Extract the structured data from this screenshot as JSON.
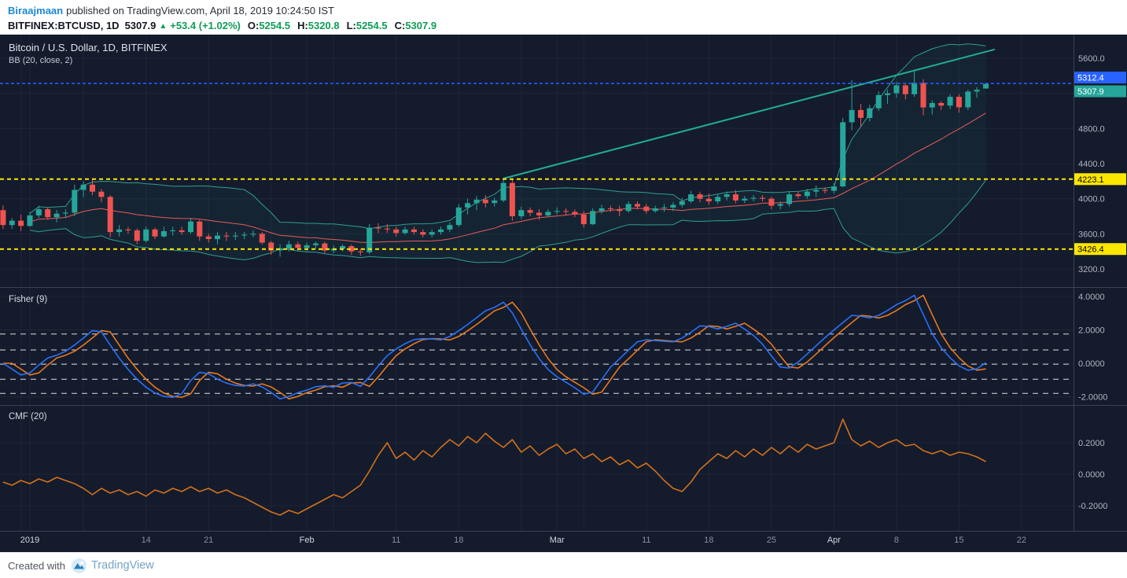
{
  "header": {
    "author": "Biraajmaan",
    "published_text": "published on TradingView.com, April 18, 2019 10:24:50 IST",
    "symbol": "BITFINEX:BTCUSD, 1D",
    "last_price": "5307.9",
    "arrow": "▲",
    "change": "+53.4 (+1.02%)",
    "o_label": "O:",
    "o_value": "5254.5",
    "h_label": "H:",
    "h_value": "5320.8",
    "l_label": "L:",
    "l_value": "5254.5",
    "c_label": "C:",
    "c_value": "5307.9"
  },
  "legends": {
    "main_title": "Bitcoin / U.S. Dollar, 1D, BITFINEX",
    "bb": "BB (20, close, 2)",
    "fisher": "Fisher (9)",
    "cmf": "CMF (20)"
  },
  "footer": {
    "created_with": "Created with",
    "brand": "TradingView"
  },
  "colors": {
    "bg": "#141b2d",
    "grid": "#1e2638",
    "divider": "#3a4156",
    "axis_text": "#b2b5be",
    "time_text_minor": "#8a8f9e",
    "time_text_major": "#d1d4dc",
    "candle_up": "#26a69a",
    "candle_down": "#ef5350",
    "bb_band": "#2f9e8f",
    "bb_fill": "rgba(47,158,143,0.07)",
    "bb_basis": "#e85a5a",
    "trendline": "#22ab94",
    "fisher_line": "#2a72f5",
    "fisher_trigger": "#e8791e",
    "fisher_level": "rgba(255,255,255,0.85)",
    "cmf_line": "#d2711a",
    "hline_blue": "#2962ff",
    "hline_yellow": "#ffe600",
    "label_teal_bg": "#26a69a",
    "header_green": "#0f9d58",
    "author_blue": "#1e88d2",
    "brand_text": "#74a3c6"
  },
  "chart_data": {
    "type": "candlestick",
    "title": "Bitcoin / U.S. Dollar, 1D, BITFINEX",
    "symbol": "BITFINEX:BTCUSD",
    "interval": "1D",
    "start_date": "2018-12-29",
    "candles_ohlc": [
      [
        3870,
        3925,
        3655,
        3700
      ],
      [
        3700,
        3780,
        3655,
        3750
      ],
      [
        3750,
        3820,
        3630,
        3690
      ],
      [
        3690,
        3850,
        3680,
        3810
      ],
      [
        3810,
        3920,
        3780,
        3880
      ],
      [
        3880,
        3900,
        3760,
        3790
      ],
      [
        3790,
        3870,
        3730,
        3830
      ],
      [
        3830,
        3880,
        3780,
        3840
      ],
      [
        3840,
        4160,
        3800,
        4100
      ],
      [
        4100,
        4200,
        4020,
        4160
      ],
      [
        4160,
        4220,
        4040,
        4080
      ],
      [
        4080,
        4110,
        3960,
        4020
      ],
      [
        4020,
        4040,
        3560,
        3620
      ],
      [
        3620,
        3700,
        3570,
        3650
      ],
      [
        3650,
        3680,
        3600,
        3640
      ],
      [
        3640,
        3660,
        3480,
        3520
      ],
      [
        3520,
        3680,
        3500,
        3650
      ],
      [
        3650,
        3670,
        3540,
        3570
      ],
      [
        3570,
        3680,
        3560,
        3630
      ],
      [
        3630,
        3680,
        3580,
        3640
      ],
      [
        3640,
        3680,
        3590,
        3620
      ],
      [
        3620,
        3780,
        3600,
        3740
      ],
      [
        3740,
        3760,
        3520,
        3570
      ],
      [
        3570,
        3600,
        3500,
        3540
      ],
      [
        3540,
        3620,
        3480,
        3580
      ],
      [
        3580,
        3620,
        3520,
        3570
      ],
      [
        3570,
        3620,
        3530,
        3580
      ],
      [
        3580,
        3620,
        3540,
        3590
      ],
      [
        3590,
        3640,
        3560,
        3600
      ],
      [
        3600,
        3620,
        3480,
        3500
      ],
      [
        3500,
        3520,
        3360,
        3410
      ],
      [
        3410,
        3480,
        3340,
        3430
      ],
      [
        3430,
        3520,
        3400,
        3480
      ],
      [
        3480,
        3510,
        3410,
        3440
      ],
      [
        3440,
        3500,
        3400,
        3470
      ],
      [
        3470,
        3510,
        3430,
        3490
      ],
      [
        3490,
        3510,
        3380,
        3410
      ],
      [
        3410,
        3470,
        3380,
        3430
      ],
      [
        3430,
        3480,
        3400,
        3460
      ],
      [
        3460,
        3480,
        3360,
        3400
      ],
      [
        3400,
        3430,
        3350,
        3390
      ],
      [
        3390,
        3710,
        3370,
        3670
      ],
      [
        3670,
        3720,
        3610,
        3660
      ],
      [
        3660,
        3710,
        3610,
        3650
      ],
      [
        3650,
        3680,
        3570,
        3610
      ],
      [
        3610,
        3680,
        3590,
        3650
      ],
      [
        3650,
        3680,
        3590,
        3620
      ],
      [
        3620,
        3650,
        3560,
        3590
      ],
      [
        3590,
        3650,
        3560,
        3620
      ],
      [
        3620,
        3680,
        3590,
        3650
      ],
      [
        3650,
        3730,
        3620,
        3700
      ],
      [
        3700,
        3940,
        3680,
        3900
      ],
      [
        3900,
        4000,
        3820,
        3950
      ],
      [
        3950,
        4030,
        3870,
        3990
      ],
      [
        3990,
        4040,
        3900,
        3950
      ],
      [
        3950,
        4010,
        3910,
        3980
      ],
      [
        3980,
        4220,
        3960,
        4180
      ],
      [
        4180,
        4230,
        3750,
        3800
      ],
      [
        3800,
        3910,
        3770,
        3870
      ],
      [
        3870,
        3900,
        3800,
        3840
      ],
      [
        3840,
        3880,
        3760,
        3810
      ],
      [
        3810,
        3880,
        3790,
        3850
      ],
      [
        3850,
        3900,
        3820,
        3860
      ],
      [
        3860,
        3890,
        3810,
        3850
      ],
      [
        3850,
        3880,
        3790,
        3820
      ],
      [
        3820,
        3860,
        3670,
        3710
      ],
      [
        3710,
        3890,
        3700,
        3860
      ],
      [
        3860,
        3930,
        3830,
        3890
      ],
      [
        3890,
        3920,
        3850,
        3880
      ],
      [
        3880,
        3920,
        3800,
        3860
      ],
      [
        3860,
        3970,
        3840,
        3940
      ],
      [
        3940,
        3970,
        3880,
        3910
      ],
      [
        3910,
        3940,
        3830,
        3860
      ],
      [
        3860,
        3920,
        3840,
        3890
      ],
      [
        3890,
        3940,
        3850,
        3900
      ],
      [
        3900,
        3960,
        3860,
        3930
      ],
      [
        3930,
        4010,
        3900,
        3970
      ],
      [
        3970,
        4090,
        3950,
        4050
      ],
      [
        4050,
        4080,
        3960,
        4000
      ],
      [
        4000,
        4060,
        3930,
        3970
      ],
      [
        3970,
        4050,
        3940,
        4020
      ],
      [
        4020,
        4080,
        3980,
        4050
      ],
      [
        4050,
        4100,
        3950,
        3980
      ],
      [
        3980,
        4030,
        3950,
        4000
      ],
      [
        4000,
        4040,
        3970,
        4010
      ],
      [
        4010,
        4040,
        3970,
        4000
      ],
      [
        4000,
        4020,
        3880,
        3920
      ],
      [
        3920,
        3970,
        3880,
        3940
      ],
      [
        3940,
        4080,
        3910,
        4050
      ],
      [
        4050,
        4080,
        4000,
        4030
      ],
      [
        4030,
        4110,
        4000,
        4080
      ],
      [
        4080,
        4150,
        4020,
        4100
      ],
      [
        4100,
        4130,
        4060,
        4090
      ],
      [
        4090,
        4180,
        4060,
        4140
      ],
      [
        4140,
        4920,
        4130,
        4870
      ],
      [
        4870,
        5350,
        4780,
        5010
      ],
      [
        5010,
        5080,
        4820,
        4920
      ],
      [
        4920,
        5070,
        4880,
        5030
      ],
      [
        5030,
        5220,
        5000,
        5180
      ],
      [
        5180,
        5240,
        5080,
        5200
      ],
      [
        5200,
        5330,
        5150,
        5290
      ],
      [
        5290,
        5320,
        5130,
        5190
      ],
      [
        5190,
        5450,
        5160,
        5320
      ],
      [
        5320,
        5360,
        4950,
        5040
      ],
      [
        5040,
        5120,
        4960,
        5090
      ],
      [
        5090,
        5110,
        5010,
        5060
      ],
      [
        5060,
        5190,
        5020,
        5160
      ],
      [
        5160,
        5190,
        4980,
        5040
      ],
      [
        5040,
        5240,
        5010,
        5220
      ],
      [
        5220,
        5270,
        5150,
        5240
      ],
      [
        5254.5,
        5320.8,
        5254.5,
        5307.9
      ]
    ],
    "overlays": {
      "bollinger": {
        "label": "BB (20, close, 2)",
        "length": 20,
        "source": "close",
        "mult": 2
      },
      "trendline": {
        "from_index": 56,
        "from_price": 4230,
        "to_index": 111,
        "to_price": 5700
      },
      "hlines": [
        {
          "price": 5312.4,
          "label": "5312.4",
          "color": "#2962ff",
          "text_color": "#ffffff",
          "style": "dashed",
          "width": 1.5,
          "stack": "above"
        },
        {
          "price": 4223.1,
          "label": "4223.1",
          "color": "#ffe600",
          "text_color": "#000000",
          "style": "dashed",
          "width": 2,
          "stack": "center"
        },
        {
          "price": 3426.4,
          "label": "3426.4",
          "color": "#ffe600",
          "text_color": "#000000",
          "style": "dashed",
          "width": 2,
          "stack": "center"
        }
      ],
      "last_price": {
        "price": 5307.9,
        "label": "5307.9",
        "color": "#26a69a",
        "text_color": "#ffffff"
      }
    },
    "price_axis": {
      "ticks": [
        {
          "v": 5600,
          "label": "5600.0"
        },
        {
          "v": 4800,
          "label": "4800.0"
        },
        {
          "v": 4400,
          "label": "4400.0"
        },
        {
          "v": 4000,
          "label": "4000.0"
        },
        {
          "v": 3600,
          "label": "3600.0"
        },
        {
          "v": 3200,
          "label": "3200.0"
        }
      ],
      "grid_values": [
        5600,
        5200,
        4800,
        4400,
        4000,
        3600,
        3200
      ],
      "range": [
        3130,
        5870
      ]
    },
    "fisher_pane": {
      "label": "Fisher (9)",
      "length": 9,
      "axis_ticks": [
        {
          "v": 4,
          "label": "4.0000"
        },
        {
          "v": 2,
          "label": "2.0000"
        },
        {
          "v": 0,
          "label": "0.0000"
        },
        {
          "v": -2,
          "label": "-2.0000"
        }
      ],
      "levels_dashed": [
        1.75,
        0.8,
        -0.05,
        -0.95,
        -1.8
      ],
      "range": [
        -2.6,
        4.6
      ]
    },
    "cmf_pane": {
      "label": "CMF (20)",
      "length": 20,
      "axis_ticks": [
        {
          "v": 0.2,
          "label": "0.2000"
        },
        {
          "v": 0,
          "label": "0.0000"
        },
        {
          "v": -0.2,
          "label": "-0.2000"
        }
      ],
      "values": [
        -0.05,
        -0.07,
        -0.04,
        -0.06,
        -0.03,
        -0.05,
        -0.02,
        -0.04,
        -0.06,
        -0.09,
        -0.13,
        -0.09,
        -0.12,
        -0.1,
        -0.13,
        -0.11,
        -0.14,
        -0.1,
        -0.12,
        -0.09,
        -0.11,
        -0.08,
        -0.11,
        -0.09,
        -0.12,
        -0.1,
        -0.13,
        -0.15,
        -0.18,
        -0.21,
        -0.24,
        -0.26,
        -0.23,
        -0.25,
        -0.22,
        -0.19,
        -0.16,
        -0.13,
        -0.15,
        -0.11,
        -0.07,
        0.02,
        0.12,
        0.2,
        0.1,
        0.14,
        0.09,
        0.15,
        0.11,
        0.17,
        0.22,
        0.18,
        0.24,
        0.2,
        0.26,
        0.21,
        0.17,
        0.22,
        0.14,
        0.18,
        0.12,
        0.16,
        0.19,
        0.13,
        0.16,
        0.1,
        0.13,
        0.08,
        0.11,
        0.06,
        0.09,
        0.04,
        0.07,
        0.02,
        -0.04,
        -0.09,
        -0.11,
        -0.05,
        0.03,
        0.08,
        0.13,
        0.1,
        0.15,
        0.11,
        0.16,
        0.12,
        0.17,
        0.13,
        0.18,
        0.14,
        0.19,
        0.16,
        0.18,
        0.2,
        0.35,
        0.22,
        0.18,
        0.21,
        0.17,
        0.2,
        0.22,
        0.18,
        0.19,
        0.15,
        0.13,
        0.15,
        0.12,
        0.14,
        0.13,
        0.11,
        0.08
      ],
      "range": [
        -0.36,
        0.44
      ]
    },
    "time_axis": {
      "ticks": [
        {
          "i": 3,
          "label": "2019",
          "major": true
        },
        {
          "i": 16,
          "label": "14",
          "major": false
        },
        {
          "i": 23,
          "label": "21",
          "major": false
        },
        {
          "i": 34,
          "label": "Feb",
          "major": true
        },
        {
          "i": 44,
          "label": "11",
          "major": false
        },
        {
          "i": 51,
          "label": "18",
          "major": false
        },
        {
          "i": 62,
          "label": "Mar",
          "major": true
        },
        {
          "i": 72,
          "label": "11",
          "major": false
        },
        {
          "i": 79,
          "label": "18",
          "major": false
        },
        {
          "i": 86,
          "label": "25",
          "major": false
        },
        {
          "i": 93,
          "label": "Apr",
          "major": true
        },
        {
          "i": 100,
          "label": "8",
          "major": false
        },
        {
          "i": 107,
          "label": "15",
          "major": false
        },
        {
          "i": 114,
          "label": "22",
          "major": false
        }
      ],
      "extra_grid_indexes": [
        2,
        9,
        30,
        37,
        58,
        65
      ]
    }
  }
}
